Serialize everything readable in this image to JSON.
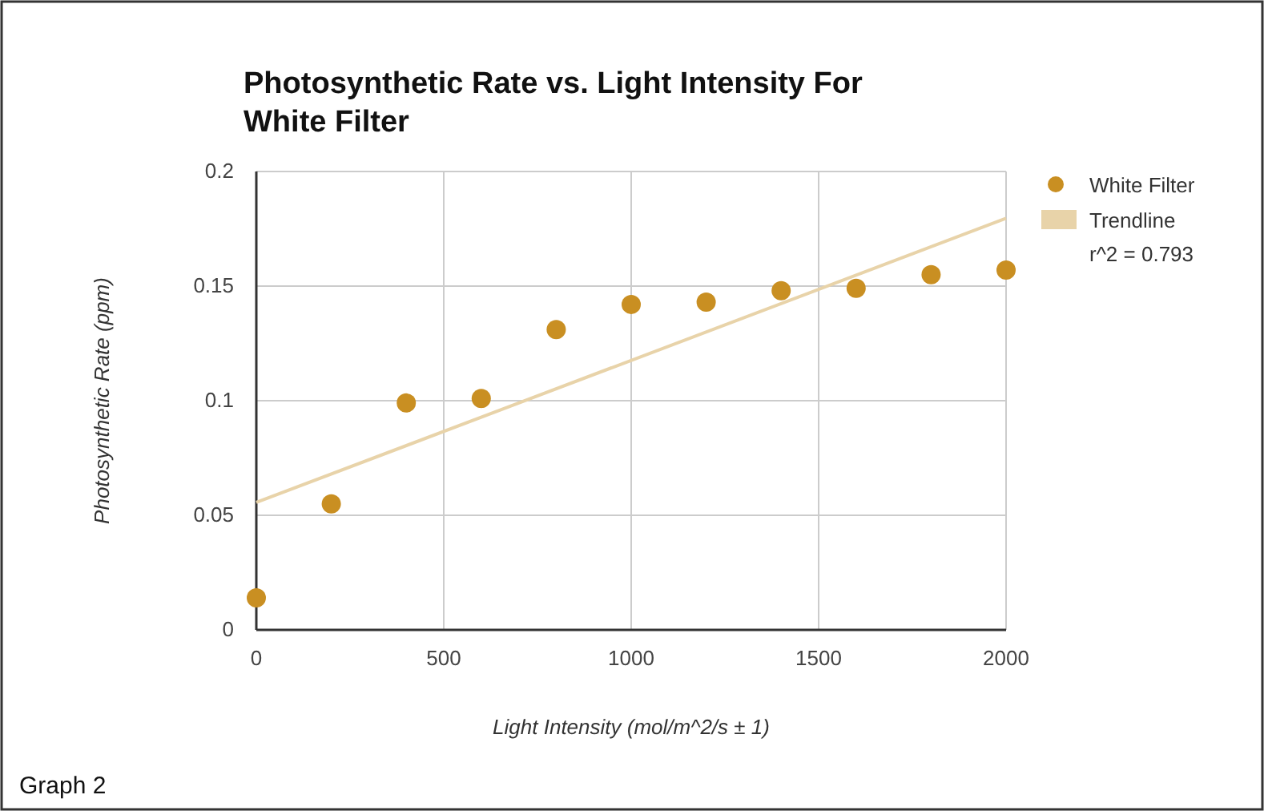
{
  "chart_data": {
    "type": "scatter",
    "title": "Photosynthetic Rate vs. Light Intensity For White Filter",
    "xlabel": "Light Intensity (mol/m^2/s ± 1)",
    "ylabel": "Photosynthetic Rate (ppm)",
    "x": [
      0,
      200,
      400,
      600,
      800,
      1000,
      1200,
      1400,
      1600,
      1800,
      2000
    ],
    "series": [
      {
        "name": "White Filter",
        "color": "#c98f22",
        "marker": "circle",
        "values": [
          0.014,
          0.055,
          0.099,
          0.101,
          0.131,
          0.142,
          0.143,
          0.148,
          0.149,
          0.155,
          0.157
        ]
      },
      {
        "name": "Trendline",
        "type": "line",
        "color": "#e8d3a9",
        "marker": "none",
        "x": [
          0,
          2000
        ],
        "values": [
          0.0556,
          0.1796
        ]
      }
    ],
    "xlim": [
      0,
      2000
    ],
    "xticks": [
      0,
      500,
      1000,
      1500,
      2000
    ],
    "ylim": [
      0,
      0.2
    ],
    "yticks": [
      0,
      0.05,
      0.1,
      0.15,
      0.2
    ],
    "grid": true,
    "legend": "top right",
    "annotations": [
      "r^2 = 0.793",
      "Graph 2"
    ]
  }
}
